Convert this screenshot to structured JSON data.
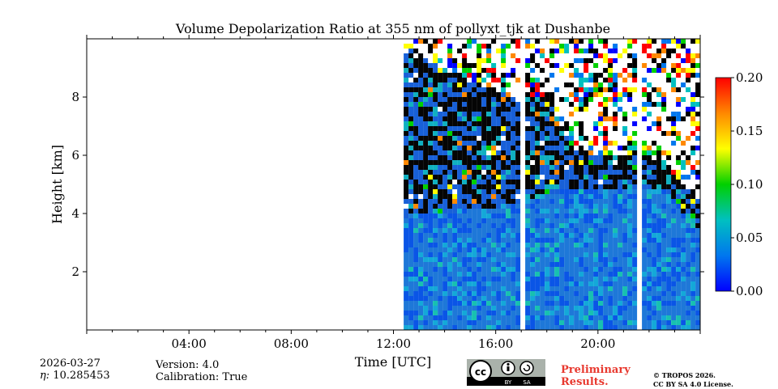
{
  "chart_data": {
    "type": "heatmap",
    "title": "Volume Depolarization Ratio at 355 nm of pollyxt_tjk at Dushanbe",
    "xlabel": "Time [UTC]",
    "ylabel": "Height [km]",
    "xlim_hours": [
      0,
      24
    ],
    "ylim_km": [
      0,
      10
    ],
    "x_ticks": [
      {
        "value": 4,
        "label": "04:00"
      },
      {
        "value": 8,
        "label": "08:00"
      },
      {
        "value": 12,
        "label": "12:00"
      },
      {
        "value": 16,
        "label": "16:00"
      },
      {
        "value": 20,
        "label": "20:00"
      }
    ],
    "y_ticks": [
      {
        "value": 2,
        "label": "2"
      },
      {
        "value": 4,
        "label": "4"
      },
      {
        "value": 6,
        "label": "6"
      },
      {
        "value": 8,
        "label": "8"
      }
    ],
    "colorbar": {
      "range": [
        0,
        0.2
      ],
      "ticks": [
        {
          "value": 0.0,
          "label": "0.00"
        },
        {
          "value": 0.05,
          "label": "0.05"
        },
        {
          "value": 0.1,
          "label": "0.10"
        },
        {
          "value": 0.15,
          "label": "0.15"
        },
        {
          "value": 0.2,
          "label": "0.20"
        }
      ],
      "colors": [
        "#0000ff",
        "#0077ee",
        "#00c0c0",
        "#00d000",
        "#ffff00",
        "#ff8800",
        "#ff0000"
      ]
    },
    "data_start_hour": 12.4,
    "gaps_hours": [
      [
        16.95,
        17.05
      ],
      [
        21.5,
        21.6
      ]
    ],
    "boundary_layer_top_km": [
      {
        "t": 12.4,
        "h": 4.0
      },
      {
        "t": 16.0,
        "h": 4.3
      },
      {
        "t": 18.0,
        "h": 4.8
      },
      {
        "t": 20.0,
        "h": 5.0
      },
      {
        "t": 21.5,
        "h": 5.0
      },
      {
        "t": 22.5,
        "h": 4.9
      },
      {
        "t": 23.2,
        "h": 4.2
      },
      {
        "t": 24.0,
        "h": 3.5
      }
    ],
    "aerosol_layer_top_km": [
      {
        "t": 12.4,
        "h": 9.8
      },
      {
        "t": 14.0,
        "h": 9.0
      },
      {
        "t": 16.0,
        "h": 8.2
      },
      {
        "t": 18.0,
        "h": 8.0
      },
      {
        "t": 19.0,
        "h": 6.2
      },
      {
        "t": 21.6,
        "h": 6.0
      },
      {
        "t": 22.5,
        "h": 5.8
      },
      {
        "t": 24.0,
        "h": 4.5
      }
    ]
  },
  "footer": {
    "date": "2026-03-27",
    "eta": "10.285453",
    "eta_prefix": "η: ",
    "version": "Version: 4.0",
    "calibration": "Calibration: True",
    "preliminary_line1": "Preliminary",
    "preliminary_line2": "Results.",
    "copyright_line1": "© TROPOS 2026.",
    "copyright_line2": "CC BY SA 4.0 License.",
    "license_badge": {
      "cc": "cc",
      "by": "BY",
      "sa": "SA"
    }
  }
}
